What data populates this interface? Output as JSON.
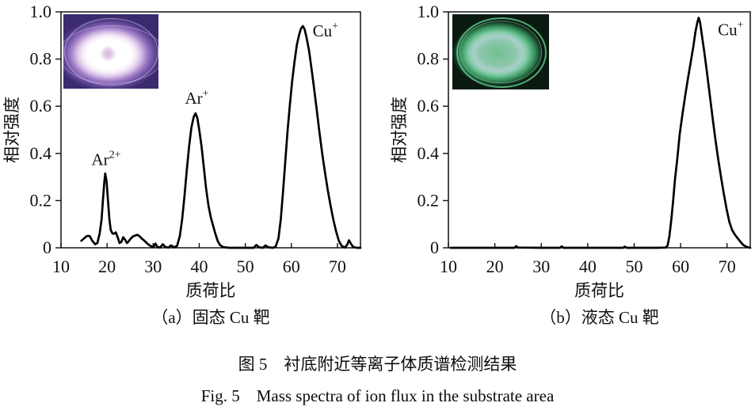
{
  "figure": {
    "caption_cn": "图 5　衬底附近等离子体质谱检测结果",
    "caption_en": "Fig. 5　Mass spectra of ion flux in the substrate area"
  },
  "chart_data": [
    {
      "type": "line",
      "panel": "a",
      "caption": "（a）固态 Cu 靶",
      "xlabel": "质荷比",
      "ylabel": "相对强度",
      "xlim": [
        10,
        75
      ],
      "ylim": [
        0,
        1.0
      ],
      "xticks": [
        10,
        20,
        30,
        40,
        50,
        60,
        70
      ],
      "yticks": [
        0,
        0.2,
        0.4,
        0.6,
        0.8,
        1.0
      ],
      "ytick_labels": [
        "0",
        "0.2",
        "0.4",
        "0.6",
        "0.8",
        "1.0"
      ],
      "grid": false,
      "line_color": "#000000",
      "inset_photo": "purple-white plasma glow photo (solid Cu target)",
      "peaks": [
        {
          "species": "Ar2+",
          "mz": 19.6,
          "intensity": 0.315
        },
        {
          "species": "Ar+",
          "mz": 39.2,
          "intensity": 0.57
        },
        {
          "species": "Cu+",
          "mz": 62.5,
          "intensity": 0.94
        }
      ],
      "annotations": [
        {
          "base": "Ar",
          "sup": "2+",
          "x": 19.8,
          "y": 0.375
        },
        {
          "base": "Ar",
          "sup": "+",
          "x": 39.5,
          "y": 0.635
        },
        {
          "base": "Cu",
          "sup": "+",
          "x": 67.4,
          "y": 0.92
        }
      ],
      "points": [
        [
          14.4,
          0.03
        ],
        [
          15.0,
          0.04
        ],
        [
          15.6,
          0.05
        ],
        [
          16.2,
          0.05
        ],
        [
          16.8,
          0.03
        ],
        [
          17.4,
          0.015
        ],
        [
          17.9,
          0.02
        ],
        [
          18.4,
          0.06
        ],
        [
          18.8,
          0.12
        ],
        [
          19.1,
          0.2
        ],
        [
          19.4,
          0.28
        ],
        [
          19.6,
          0.315
        ],
        [
          19.9,
          0.28
        ],
        [
          20.2,
          0.2
        ],
        [
          20.5,
          0.12
        ],
        [
          20.8,
          0.075
        ],
        [
          21.2,
          0.06
        ],
        [
          21.5,
          0.06
        ],
        [
          21.9,
          0.065
        ],
        [
          22.3,
          0.045
        ],
        [
          22.7,
          0.02
        ],
        [
          23.1,
          0.025
        ],
        [
          23.5,
          0.045
        ],
        [
          23.9,
          0.035
        ],
        [
          24.3,
          0.02
        ],
        [
          24.7,
          0.028
        ],
        [
          25.1,
          0.038
        ],
        [
          25.6,
          0.048
        ],
        [
          26.1,
          0.052
        ],
        [
          26.6,
          0.055
        ],
        [
          27.1,
          0.048
        ],
        [
          27.6,
          0.038
        ],
        [
          28.1,
          0.03
        ],
        [
          28.6,
          0.02
        ],
        [
          29.1,
          0.012
        ],
        [
          29.6,
          0.006
        ],
        [
          30.1,
          0.004
        ],
        [
          30.5,
          0.018
        ],
        [
          30.9,
          0.004
        ],
        [
          31.5,
          0.001
        ],
        [
          32.1,
          0.015
        ],
        [
          32.6,
          0.004
        ],
        [
          33.3,
          0.001
        ],
        [
          33.9,
          0.01
        ],
        [
          34.5,
          0.002
        ],
        [
          35.2,
          0.008
        ],
        [
          35.8,
          0.05
        ],
        [
          36.3,
          0.12
        ],
        [
          36.8,
          0.22
        ],
        [
          37.3,
          0.33
        ],
        [
          37.8,
          0.43
        ],
        [
          38.3,
          0.51
        ],
        [
          38.8,
          0.555
        ],
        [
          39.2,
          0.57
        ],
        [
          39.6,
          0.55
        ],
        [
          40.0,
          0.5
        ],
        [
          40.5,
          0.43
        ],
        [
          41.0,
          0.34
        ],
        [
          41.5,
          0.25
        ],
        [
          42.0,
          0.18
        ],
        [
          42.5,
          0.13
        ],
        [
          43.0,
          0.095
        ],
        [
          43.5,
          0.06
        ],
        [
          44.0,
          0.03
        ],
        [
          44.5,
          0.012
        ],
        [
          45.2,
          0.003
        ],
        [
          46.5,
          0.0
        ],
        [
          48.0,
          0.0
        ],
        [
          50.0,
          0.0
        ],
        [
          51.8,
          0.0
        ],
        [
          52.4,
          0.012
        ],
        [
          53.0,
          0.002
        ],
        [
          53.8,
          0.0
        ],
        [
          54.4,
          0.01
        ],
        [
          55.0,
          0.002
        ],
        [
          56.0,
          0.0
        ],
        [
          56.6,
          0.005
        ],
        [
          57.2,
          0.04
        ],
        [
          57.7,
          0.12
        ],
        [
          58.2,
          0.24
        ],
        [
          58.7,
          0.37
        ],
        [
          59.2,
          0.5
        ],
        [
          59.7,
          0.61
        ],
        [
          60.2,
          0.71
        ],
        [
          60.7,
          0.79
        ],
        [
          61.2,
          0.86
        ],
        [
          61.7,
          0.905
        ],
        [
          62.1,
          0.93
        ],
        [
          62.5,
          0.94
        ],
        [
          62.9,
          0.925
        ],
        [
          63.3,
          0.89
        ],
        [
          63.8,
          0.84
        ],
        [
          64.3,
          0.77
        ],
        [
          64.9,
          0.68
        ],
        [
          65.5,
          0.585
        ],
        [
          66.1,
          0.49
        ],
        [
          66.7,
          0.4
        ],
        [
          67.3,
          0.32
        ],
        [
          67.9,
          0.245
        ],
        [
          68.5,
          0.18
        ],
        [
          69.1,
          0.12
        ],
        [
          69.7,
          0.07
        ],
        [
          70.3,
          0.03
        ],
        [
          70.9,
          0.008
        ],
        [
          71.6,
          0.001
        ],
        [
          72.1,
          0.012
        ],
        [
          72.5,
          0.032
        ],
        [
          72.9,
          0.018
        ],
        [
          73.4,
          0.004
        ],
        [
          74.2,
          0.0
        ],
        [
          75.0,
          0.0
        ]
      ]
    },
    {
      "type": "line",
      "panel": "b",
      "caption": "（b）液态 Cu 靶",
      "xlabel": "质荷比",
      "ylabel": "相对强度",
      "xlim": [
        10,
        75
      ],
      "ylim": [
        0,
        1.0
      ],
      "xticks": [
        10,
        20,
        30,
        40,
        50,
        60,
        70
      ],
      "yticks": [
        0,
        0.2,
        0.4,
        0.6,
        0.8,
        1.0
      ],
      "ytick_labels": [
        "0",
        "0.2",
        "0.4",
        "0.6",
        "0.8",
        "1.0"
      ],
      "grid": false,
      "line_color": "#000000",
      "inset_photo": "green plasma glow photo (liquid Cu target)",
      "peaks": [
        {
          "species": "Cu+",
          "mz": 63.9,
          "intensity": 0.975
        }
      ],
      "annotations": [
        {
          "base": "Cu",
          "sup": "+",
          "x": 70.8,
          "y": 0.925
        }
      ],
      "points": [
        [
          10.5,
          0.0
        ],
        [
          15.0,
          0.0
        ],
        [
          20.0,
          0.0
        ],
        [
          24.2,
          0.0
        ],
        [
          24.6,
          0.007
        ],
        [
          25.0,
          0.001
        ],
        [
          30.0,
          0.0
        ],
        [
          34.0,
          0.0
        ],
        [
          34.4,
          0.006
        ],
        [
          34.8,
          0.0
        ],
        [
          40.0,
          0.0
        ],
        [
          44.0,
          0.0
        ],
        [
          47.6,
          0.0
        ],
        [
          48.0,
          0.005
        ],
        [
          48.4,
          0.0
        ],
        [
          52.0,
          0.0
        ],
        [
          55.0,
          0.0
        ],
        [
          56.8,
          0.001
        ],
        [
          57.2,
          0.01
        ],
        [
          57.6,
          0.05
        ],
        [
          58.0,
          0.12
        ],
        [
          58.4,
          0.2
        ],
        [
          58.8,
          0.29
        ],
        [
          59.3,
          0.38
        ],
        [
          59.8,
          0.48
        ],
        [
          60.4,
          0.565
        ],
        [
          61.0,
          0.645
        ],
        [
          61.6,
          0.72
        ],
        [
          62.2,
          0.79
        ],
        [
          62.8,
          0.86
        ],
        [
          63.2,
          0.915
        ],
        [
          63.6,
          0.955
        ],
        [
          63.9,
          0.975
        ],
        [
          64.2,
          0.955
        ],
        [
          64.6,
          0.9
        ],
        [
          65.1,
          0.83
        ],
        [
          65.7,
          0.74
        ],
        [
          66.3,
          0.645
        ],
        [
          66.9,
          0.55
        ],
        [
          67.5,
          0.46
        ],
        [
          68.1,
          0.375
        ],
        [
          68.7,
          0.3
        ],
        [
          69.3,
          0.23
        ],
        [
          69.9,
          0.165
        ],
        [
          70.5,
          0.11
        ],
        [
          71.1,
          0.075
        ],
        [
          71.7,
          0.055
        ],
        [
          72.3,
          0.04
        ],
        [
          72.9,
          0.025
        ],
        [
          73.5,
          0.012
        ],
        [
          74.2,
          0.004
        ],
        [
          75.0,
          0.0
        ]
      ]
    }
  ]
}
